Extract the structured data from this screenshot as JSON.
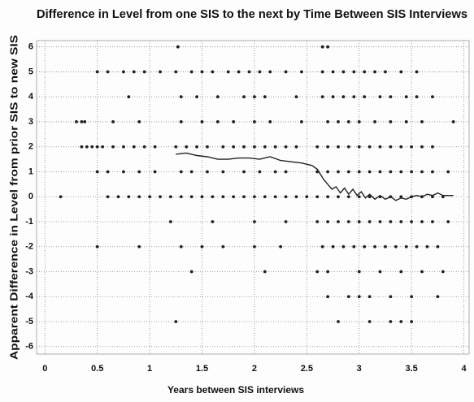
{
  "chart_data": {
    "type": "scatter",
    "title": "Difference in Level from one SIS to the next by Time Between SIS Interviews",
    "x_label": "Years between SIS interviews",
    "y_label": "Apparent Difference in Level from prior SIS to new SIS",
    "xlim": [
      -0.08,
      4.05
    ],
    "ylim": [
      -6.3,
      6.25
    ],
    "xticks": [
      0,
      0.5,
      1,
      1.5,
      2,
      2.5,
      3,
      3.5,
      4
    ],
    "yticks": [
      -6,
      -5,
      -4,
      -3,
      -2,
      -1,
      0,
      1,
      2,
      3,
      4,
      5,
      6
    ],
    "grid": true,
    "series": [
      {
        "type": "scatter",
        "color": "#222222",
        "x": [
          1.27,
          2.65,
          2.7,
          0.5,
          0.6,
          0.75,
          0.85,
          0.95,
          1.1,
          1.25,
          1.4,
          1.5,
          1.6,
          1.75,
          1.85,
          1.95,
          2.05,
          2.15,
          2.3,
          2.45,
          2.65,
          2.75,
          2.85,
          2.95,
          3.05,
          3.15,
          3.25,
          3.4,
          3.55,
          0.8,
          1.3,
          1.45,
          1.65,
          1.9,
          2.0,
          2.1,
          2.4,
          2.65,
          2.75,
          2.85,
          2.95,
          3.05,
          3.2,
          3.3,
          3.45,
          3.55,
          3.7,
          0.3,
          0.35,
          0.38,
          0.65,
          0.9,
          1.3,
          1.5,
          1.65,
          1.8,
          2.0,
          2.15,
          2.45,
          2.7,
          2.8,
          2.9,
          3.0,
          3.15,
          3.3,
          3.45,
          3.6,
          3.9,
          0.35,
          0.4,
          0.45,
          0.5,
          0.55,
          0.65,
          0.75,
          0.85,
          0.95,
          1.05,
          1.25,
          1.35,
          1.45,
          1.55,
          1.7,
          1.8,
          1.9,
          2.0,
          2.1,
          2.2,
          2.3,
          2.4,
          2.6,
          2.7,
          2.8,
          2.9,
          3.0,
          3.1,
          3.2,
          3.3,
          3.4,
          3.5,
          3.6,
          3.7,
          0.5,
          0.6,
          0.75,
          0.9,
          1.05,
          1.3,
          1.4,
          1.55,
          1.7,
          1.9,
          2.05,
          2.2,
          2.3,
          2.6,
          2.7,
          2.8,
          2.9,
          3.0,
          3.1,
          3.2,
          3.3,
          3.4,
          3.5,
          3.6,
          3.7,
          3.85,
          0.15,
          0.6,
          0.7,
          0.8,
          0.9,
          1.0,
          1.1,
          1.2,
          1.3,
          1.4,
          1.5,
          1.6,
          1.7,
          1.8,
          1.9,
          2.0,
          2.1,
          2.2,
          2.3,
          2.4,
          2.5,
          2.6,
          2.7,
          2.8,
          2.9,
          3.0,
          3.1,
          3.2,
          3.3,
          3.4,
          3.5,
          3.6,
          3.7,
          3.8,
          1.2,
          1.6,
          2.0,
          2.3,
          2.6,
          2.7,
          2.8,
          2.9,
          3.0,
          3.1,
          3.2,
          3.3,
          3.4,
          3.5,
          3.6,
          3.7,
          3.85,
          0.5,
          0.9,
          1.3,
          1.5,
          1.7,
          2.0,
          2.25,
          2.65,
          2.75,
          2.85,
          2.95,
          3.05,
          3.15,
          3.25,
          3.35,
          3.45,
          3.55,
          3.65,
          3.75,
          1.4,
          2.1,
          2.6,
          2.7,
          3.0,
          3.2,
          3.4,
          3.6,
          3.8,
          2.7,
          2.9,
          3.0,
          3.1,
          3.3,
          3.5,
          3.75,
          1.25,
          2.8,
          3.1,
          3.3,
          3.4,
          3.5
        ],
        "y": [
          6,
          6,
          6,
          5,
          5,
          5,
          5,
          5,
          5,
          5,
          5,
          5,
          5,
          5,
          5,
          5,
          5,
          5,
          5,
          5,
          5,
          5,
          5,
          5,
          5,
          5,
          5,
          5,
          5,
          4,
          4,
          4,
          4,
          4,
          4,
          4,
          4,
          4,
          4,
          4,
          4,
          4,
          4,
          4,
          4,
          4,
          4,
          3,
          3,
          3,
          3,
          3,
          3,
          3,
          3,
          3,
          3,
          3,
          3,
          3,
          3,
          3,
          3,
          3,
          3,
          3,
          3,
          3,
          2,
          2,
          2,
          2,
          2,
          2,
          2,
          2,
          2,
          2,
          2,
          2,
          2,
          2,
          2,
          2,
          2,
          2,
          2,
          2,
          2,
          2,
          2,
          2,
          2,
          2,
          2,
          2,
          2,
          2,
          2,
          2,
          2,
          2,
          1,
          1,
          1,
          1,
          1,
          1,
          1,
          1,
          1,
          1,
          1,
          1,
          1,
          1,
          1,
          1,
          1,
          1,
          1,
          1,
          1,
          1,
          1,
          1,
          1,
          1,
          0,
          0,
          0,
          0,
          0,
          0,
          0,
          0,
          0,
          0,
          0,
          0,
          0,
          0,
          0,
          0,
          0,
          0,
          0,
          0,
          0,
          0,
          0,
          0,
          0,
          0,
          0,
          0,
          0,
          0,
          0,
          0,
          0,
          0,
          -1,
          -1,
          -1,
          -1,
          -1,
          -1,
          -1,
          -1,
          -1,
          -1,
          -1,
          -1,
          -1,
          -1,
          -1,
          -1,
          -1,
          -2,
          -2,
          -2,
          -2,
          -2,
          -2,
          -2,
          -2,
          -2,
          -2,
          -2,
          -2,
          -2,
          -2,
          -2,
          -2,
          -2,
          -2,
          -2,
          -3,
          -3,
          -3,
          -3,
          -3,
          -3,
          -3,
          -3,
          -3,
          -4,
          -4,
          -4,
          -4,
          -4,
          -4,
          -4,
          -5,
          -5,
          -5,
          -5,
          -5,
          -5
        ]
      },
      {
        "type": "line",
        "color": "#222222",
        "x": [
          1.25,
          1.35,
          1.45,
          1.55,
          1.65,
          1.75,
          1.85,
          1.95,
          2.05,
          2.15,
          2.25,
          2.35,
          2.45,
          2.55,
          2.6,
          2.63,
          2.66,
          2.7,
          2.74,
          2.78,
          2.82,
          2.86,
          2.9,
          2.94,
          2.98,
          3.02,
          3.06,
          3.1,
          3.15,
          3.2,
          3.25,
          3.3,
          3.35,
          3.4,
          3.45,
          3.5,
          3.55,
          3.6,
          3.65,
          3.7,
          3.75,
          3.8,
          3.9
        ],
        "y": [
          1.7,
          1.75,
          1.65,
          1.6,
          1.5,
          1.5,
          1.55,
          1.55,
          1.5,
          1.6,
          1.45,
          1.4,
          1.35,
          1.25,
          1.1,
          0.9,
          0.7,
          0.5,
          0.3,
          0.4,
          0.15,
          0.35,
          0.1,
          0.3,
          0.05,
          0.2,
          -0.05,
          0.1,
          -0.1,
          0.05,
          -0.1,
          0,
          -0.15,
          -0.05,
          -0.1,
          0,
          0.05,
          0,
          0.1,
          0.05,
          0.15,
          0.05,
          0.05
        ]
      }
    ]
  }
}
